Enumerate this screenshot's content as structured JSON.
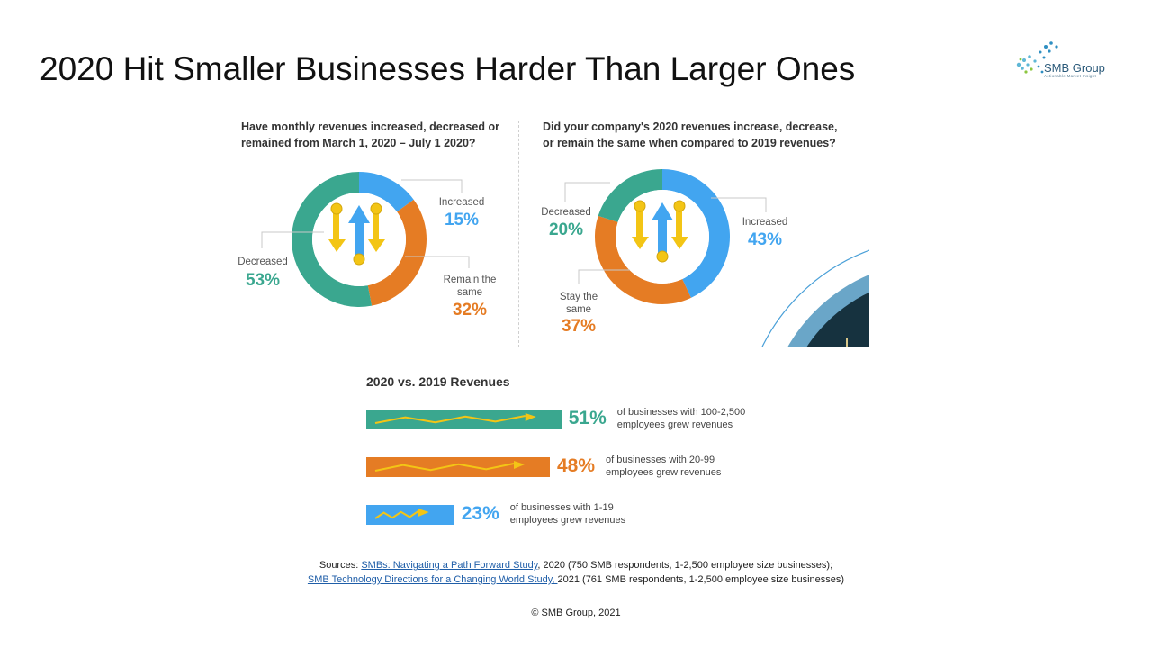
{
  "slide": {
    "title": "2020 Hit Smaller Businesses Harder Than Larger Ones",
    "logo": {
      "name": "SMB Group",
      "tagline": "Actionable Market Insight"
    }
  },
  "chart_data": [
    {
      "type": "pie",
      "title": "Have monthly revenues increased, decreased or remained from March 1, 2020 – July 1 2020?",
      "title_lines": [
        "Have monthly revenues increased, decreased or",
        "remained from March 1, 2020 – July 1 2020?"
      ],
      "slices": [
        {
          "label": "Increased",
          "value": 15,
          "display": "15%",
          "color": "#42a5f0"
        },
        {
          "label": "Remain the same",
          "value": 32,
          "display": "32%",
          "color": "#e57c24"
        },
        {
          "label": "Decreased",
          "value": 53,
          "display": "53%",
          "color": "#3aa78f"
        }
      ]
    },
    {
      "type": "pie",
      "title": "Did your company's 2020 revenues increase, decrease, or remain the same when compared to 2019 revenues?",
      "title_lines": [
        "Did your company's 2020 revenues increase, decrease,",
        "or remain the same when compared to 2019 revenues?"
      ],
      "slices": [
        {
          "label": "Increased",
          "value": 43,
          "display": "43%",
          "color": "#42a5f0"
        },
        {
          "label": "Stay the same",
          "value": 37,
          "display": "37%",
          "color": "#e57c24"
        },
        {
          "label": "Decreased",
          "value": 20,
          "display": "20%",
          "color": "#3aa78f"
        }
      ]
    },
    {
      "type": "bar",
      "title": "2020 vs. 2019 Revenues",
      "categories": [
        "100-2,500",
        "20-99",
        "1-19"
      ],
      "values": [
        51,
        48,
        23
      ],
      "displays": [
        "51%",
        "48%",
        "23%"
      ],
      "colors": [
        "#3aa78f",
        "#e57c24",
        "#42a5f0"
      ],
      "descriptions": [
        [
          "of businesses with 100-2,500",
          "employees grew revenues"
        ],
        [
          "of businesses with 20-99",
          "employees grew revenues"
        ],
        [
          "of businesses with 1-19",
          "employees grew revenues"
        ]
      ]
    }
  ],
  "sources": {
    "prefix": "Sources: ",
    "link1": "SMBs: Navigating a Path Forward Study",
    "text1": ", 2020 (750 SMB respondents, 1-2,500 employee size businesses);",
    "link2": "SMB Technology Directions for a Changing World Study, ",
    "text2": "2021  (761 SMB respondents, 1-2,500 employee size  businesses)"
  },
  "copyright": "© SMB Group, 2021",
  "colors": {
    "increased": "#42a5f0",
    "same": "#e57c24",
    "decreased": "#3aa78f",
    "coin": "#f3c515"
  }
}
